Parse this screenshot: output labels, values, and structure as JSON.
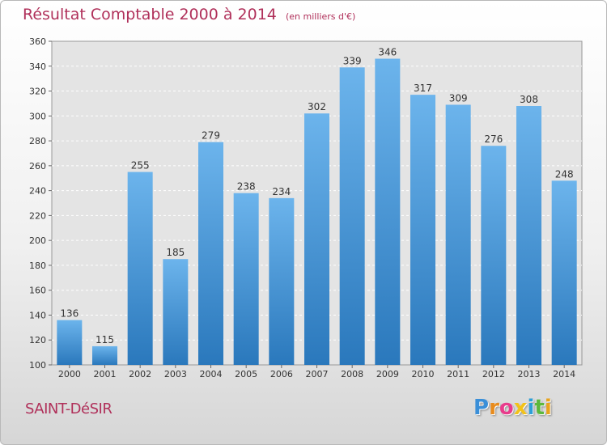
{
  "header": {
    "title": "Résultat Comptable 2000 à 2014",
    "subtitle": "(en milliers d'€)"
  },
  "footer": {
    "place": "SAINT-DéSIR",
    "logo_letters": [
      "P",
      "r",
      "o",
      "x",
      "i",
      "t",
      "i"
    ],
    "logo_colors": [
      "#3a8fd8",
      "#e88b1c",
      "#e83c8c",
      "#f2c21a",
      "#2e9fd6",
      "#5cb83c",
      "#e8a31c"
    ]
  },
  "colors": {
    "bar_top": "#6cb4ec",
    "bar_bottom": "#2a78bc",
    "text_accent": "#b0305a"
  },
  "chart_data": {
    "type": "bar",
    "title": "Résultat Comptable 2000 à 2014",
    "subtitle": "(en milliers d'€)",
    "categories": [
      "2000",
      "2001",
      "2002",
      "2003",
      "2004",
      "2005",
      "2006",
      "2007",
      "2008",
      "2009",
      "2010",
      "2011",
      "2012",
      "2013",
      "2014"
    ],
    "values": [
      136,
      115,
      255,
      185,
      279,
      238,
      234,
      302,
      339,
      346,
      317,
      309,
      276,
      308,
      248
    ],
    "ylim": [
      100,
      360
    ],
    "yticks": [
      100,
      120,
      140,
      160,
      180,
      200,
      220,
      240,
      260,
      280,
      300,
      320,
      340,
      360
    ],
    "grid": true,
    "xlabel": "",
    "ylabel": ""
  }
}
